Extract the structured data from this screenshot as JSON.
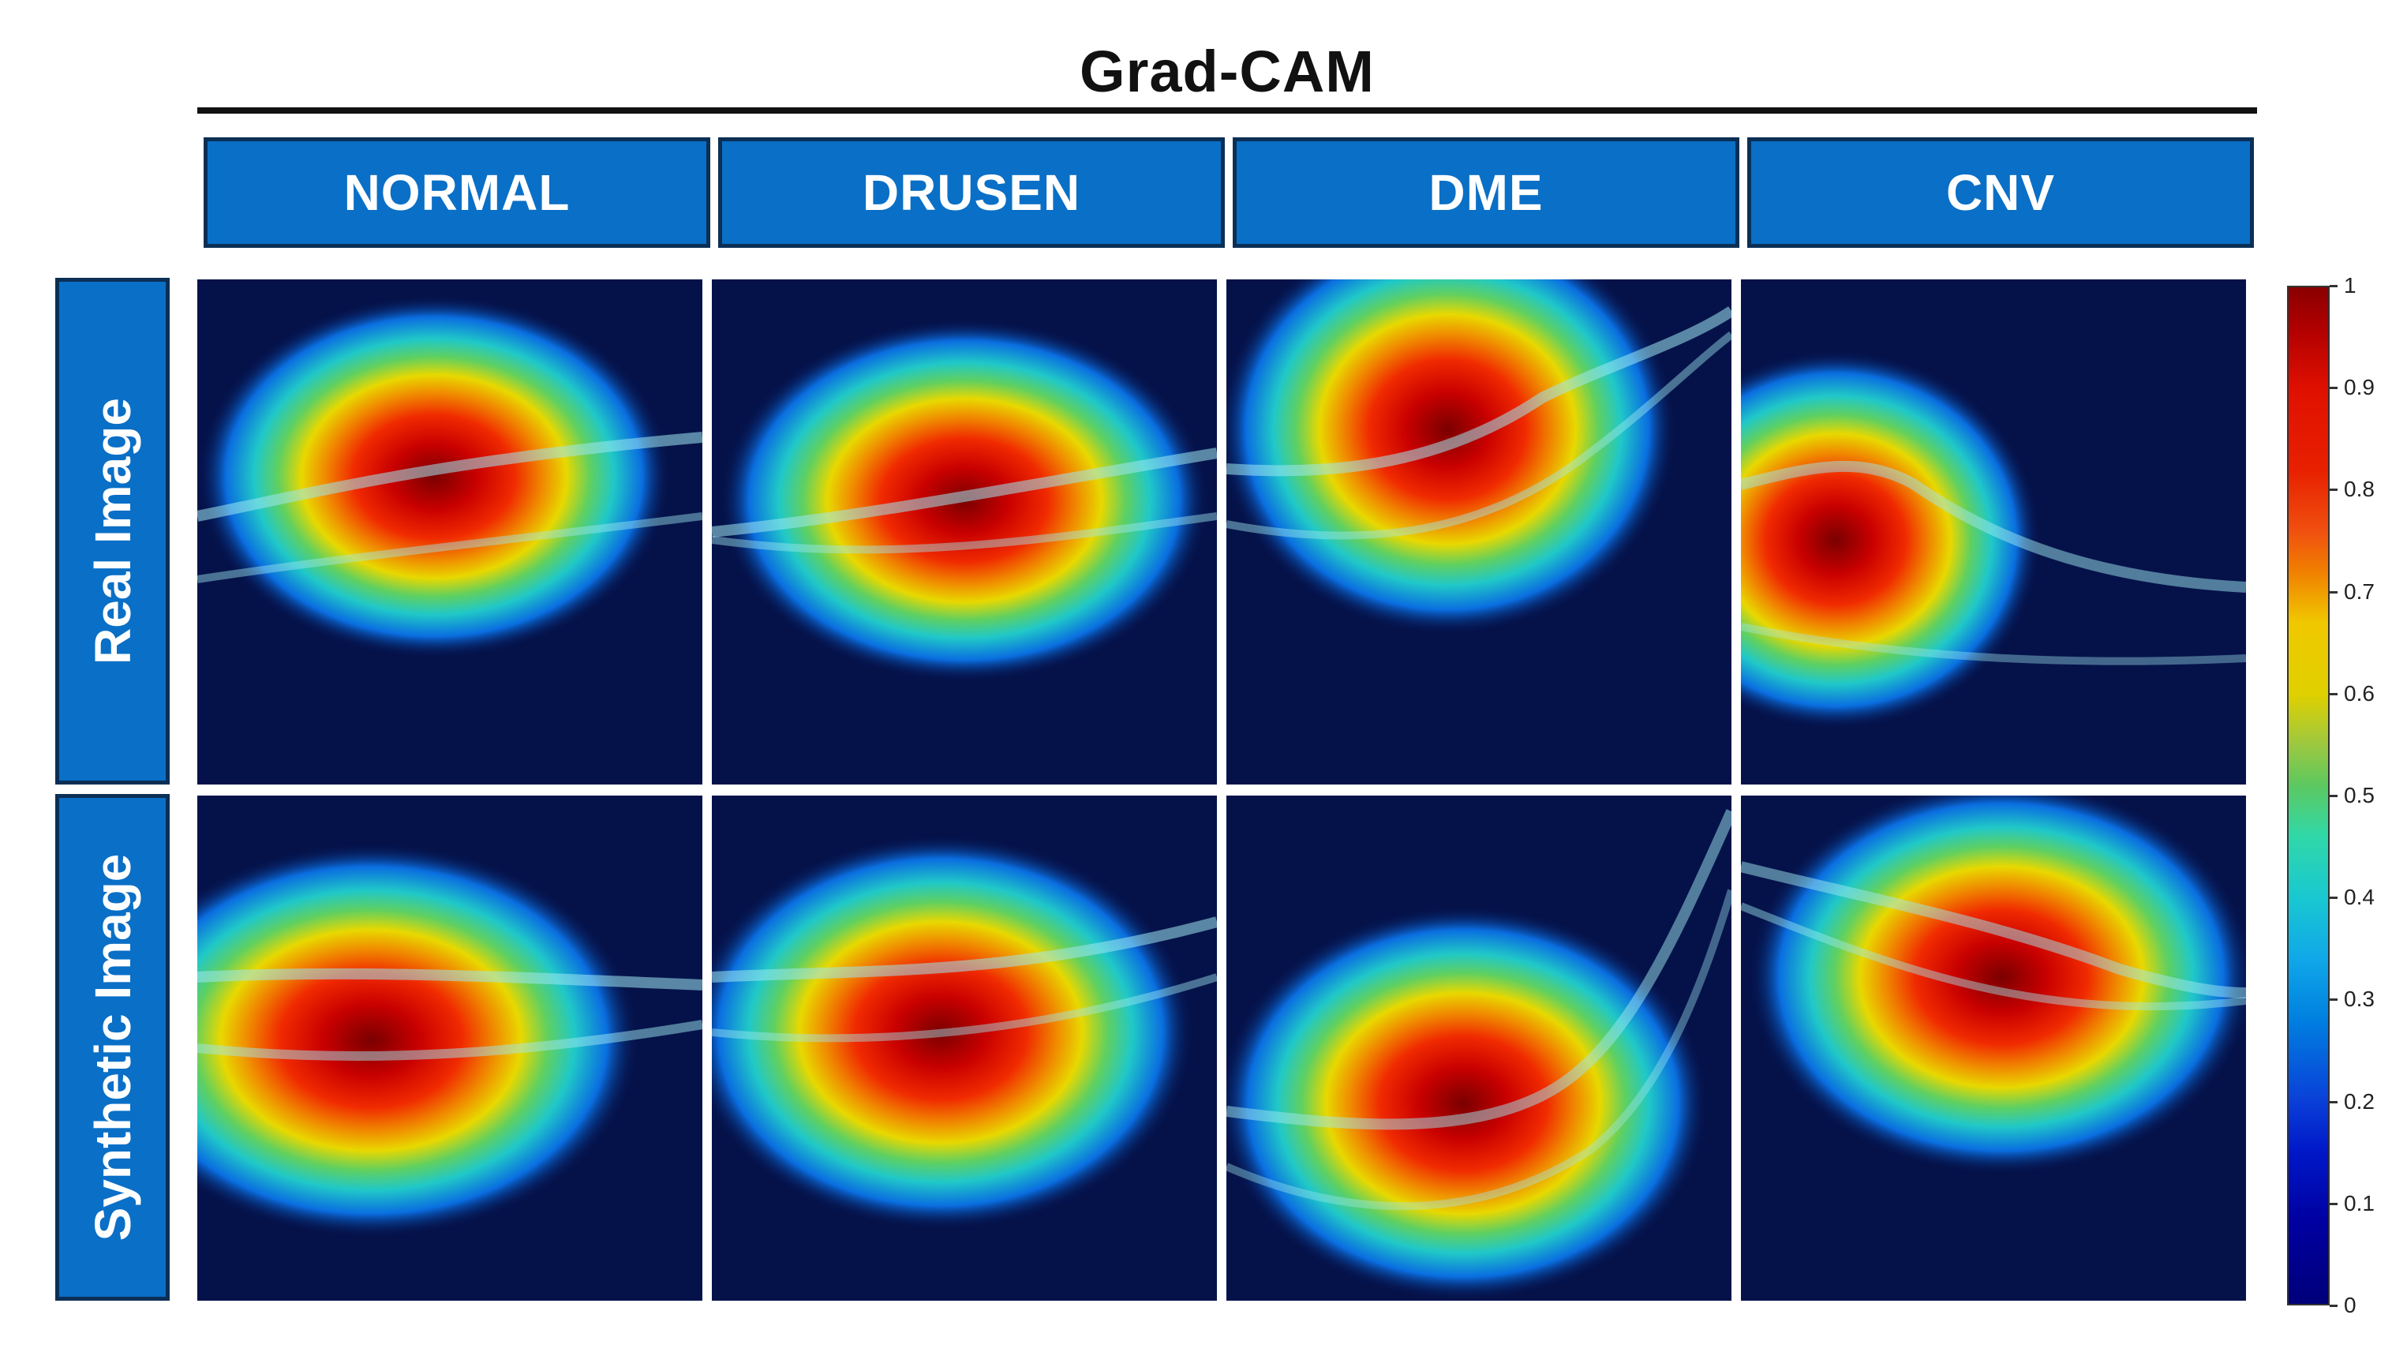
{
  "figure": {
    "title": "Grad-CAM",
    "columns": [
      "NORMAL",
      "DRUSEN",
      "DME",
      "CNV"
    ],
    "rows": [
      "Real Image",
      "Synthetic Image"
    ],
    "colorbar": {
      "ticks": [
        "1",
        "0.9",
        "0.8",
        "0.7",
        "0.6",
        "0.5",
        "0.4",
        "0.3",
        "0.2",
        "0.1",
        "0"
      ],
      "colormap": "jet",
      "colors": [
        "#00007a",
        "#0040d8",
        "#10a8e8",
        "#30d8a8",
        "#e0d000",
        "#f08000",
        "#e01000",
        "#8a0000"
      ]
    },
    "panels": [
      {
        "row": "Real Image",
        "column": "NORMAL",
        "image": "oct-heatmap"
      },
      {
        "row": "Real Image",
        "column": "DRUSEN",
        "image": "oct-heatmap"
      },
      {
        "row": "Real Image",
        "column": "DME",
        "image": "oct-heatmap"
      },
      {
        "row": "Real Image",
        "column": "CNV",
        "image": "oct-heatmap"
      },
      {
        "row": "Synthetic Image",
        "column": "NORMAL",
        "image": "oct-heatmap"
      },
      {
        "row": "Synthetic Image",
        "column": "DRUSEN",
        "image": "oct-heatmap"
      },
      {
        "row": "Synthetic Image",
        "column": "DME",
        "image": "oct-heatmap"
      },
      {
        "row": "Synthetic Image",
        "column": "CNV",
        "image": "oct-heatmap"
      }
    ]
  }
}
